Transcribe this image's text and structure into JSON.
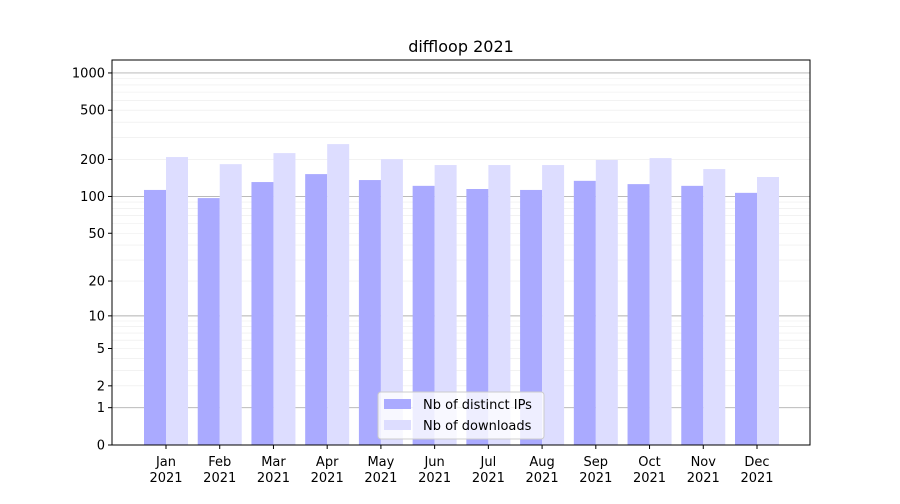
{
  "chart_data": {
    "type": "bar",
    "title": "diffloop 2021",
    "xlabel": "",
    "ylabel": "",
    "yscale": "symlog",
    "ylim": [
      0,
      1300
    ],
    "grid": true,
    "legend_position": "bottom-center",
    "categories": [
      "Jan\n2021",
      "Feb\n2021",
      "Mar\n2021",
      "Apr\n2021",
      "May\n2021",
      "Jun\n2021",
      "Jul\n2021",
      "Aug\n2021",
      "Sep\n2021",
      "Oct\n2021",
      "Nov\n2021",
      "Dec\n2021"
    ],
    "yticks": [
      0,
      1,
      2,
      5,
      10,
      20,
      50,
      100,
      200,
      500,
      1000
    ],
    "series": [
      {
        "name": "Nb of distinct IPs",
        "color": "#aaaaff",
        "values": [
          113,
          97,
          131,
          152,
          136,
          122,
          115,
          113,
          134,
          126,
          122,
          107
        ]
      },
      {
        "name": "Nb of downloads",
        "color": "#ddddff",
        "values": [
          209,
          183,
          225,
          266,
          201,
          180,
          180,
          180,
          198,
          205,
          167,
          144
        ]
      }
    ]
  }
}
